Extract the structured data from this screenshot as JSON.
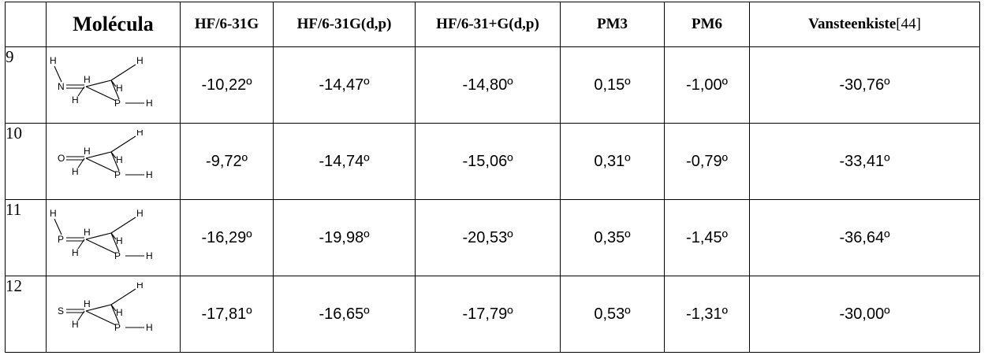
{
  "table": {
    "headers": {
      "index": "",
      "molecule": "Molécula",
      "hf631g": "HF/6-31G",
      "hf631gdp": "HF/6-31G(d,p)",
      "hf631pgdp": "HF/6-31+G(d,p)",
      "pm3": "PM3",
      "pm6": "PM6",
      "ref_name": "Vansteenkiste",
      "ref_cite": "[44]"
    },
    "rows": [
      {
        "index": "9",
        "molecule": {
          "group": "N",
          "substituent_h": "H",
          "atoms": {
            "h": "H",
            "p": "P"
          }
        },
        "hf631g": "-10,22º",
        "hf631gdp": "-14,47º",
        "hf631pgdp": "-14,80º",
        "pm3": "0,15º",
        "pm6": "-1,00º",
        "vansteenkiste": "-30,76º"
      },
      {
        "index": "10",
        "molecule": {
          "group": "O",
          "atoms": {
            "h": "H",
            "p": "P"
          }
        },
        "hf631g": "-9,72º",
        "hf631gdp": "-14,74º",
        "hf631pgdp": "-15,06º",
        "pm3": "0,31º",
        "pm6": "-0,79º",
        "vansteenkiste": "-33,41º"
      },
      {
        "index": "11",
        "molecule": {
          "group": "P",
          "substituent_h": "H",
          "atoms": {
            "h": "H",
            "p": "P"
          }
        },
        "hf631g": "-16,29º",
        "hf631gdp": "-19,98º",
        "hf631pgdp": "-20,53º",
        "pm3": "0,35º",
        "pm6": "-1,45º",
        "vansteenkiste": "-36,64º"
      },
      {
        "index": "12",
        "molecule": {
          "group": "S",
          "atoms": {
            "h": "H",
            "p": "P"
          }
        },
        "hf631g": "-17,81º",
        "hf631gdp": "-16,65º",
        "hf631pgdp": "-17,79º",
        "pm3": "0,53º",
        "pm6": "-1,31º",
        "vansteenkiste": "-30,00º"
      }
    ]
  }
}
